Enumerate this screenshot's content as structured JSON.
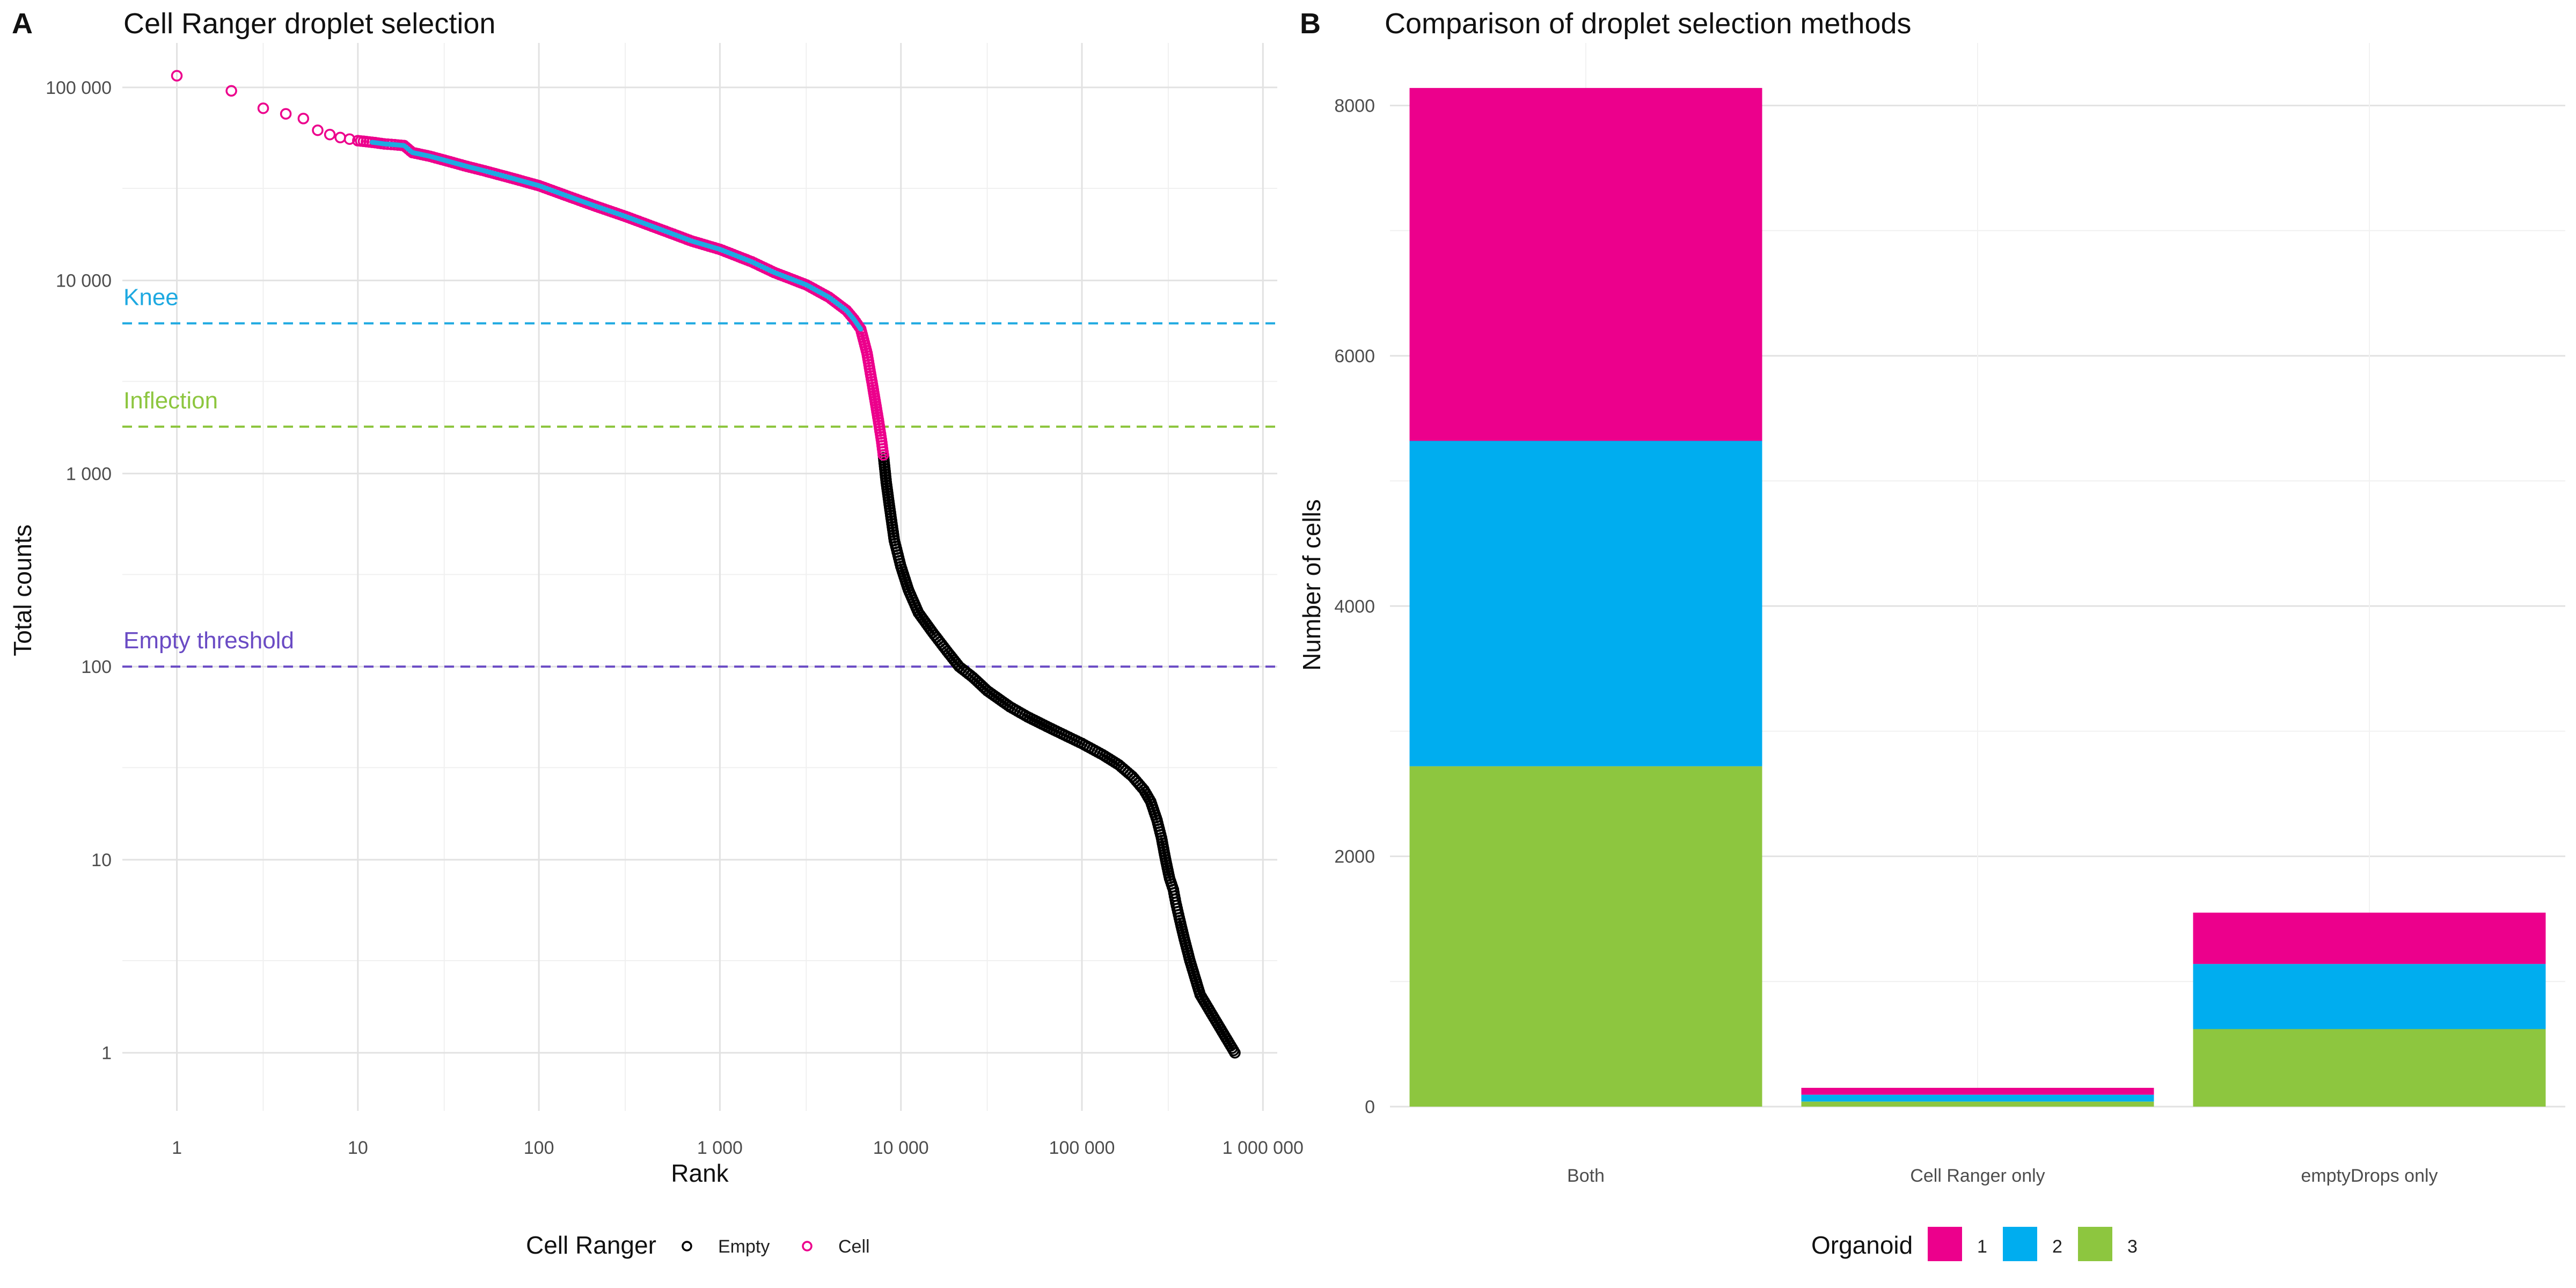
{
  "panel_a": {
    "tag": "A",
    "legend": {
      "title": "Cell Ranger",
      "items": [
        {
          "label": "Empty",
          "color": "#000000"
        },
        {
          "label": "Cell",
          "color": "#EC008C"
        }
      ]
    }
  },
  "panel_b": {
    "tag": "B",
    "legend": {
      "title": "Organoid",
      "items": [
        {
          "label": "1",
          "color": "#EC008C"
        },
        {
          "label": "2",
          "color": "#00ADEF"
        },
        {
          "label": "3",
          "color": "#8DC63F"
        }
      ]
    }
  },
  "chart_data": [
    {
      "type": "scatter",
      "title": "Cell Ranger droplet selection",
      "xlabel": "Rank",
      "ylabel": "Total counts",
      "x_scale": "log10",
      "y_scale": "log10",
      "xlim": [
        0.5,
        1200000
      ],
      "ylim": [
        0.5,
        170000
      ],
      "x_ticks": [
        {
          "value": 1,
          "label": "1"
        },
        {
          "value": 10,
          "label": "10"
        },
        {
          "value": 100,
          "label": "100"
        },
        {
          "value": 1000,
          "label": "1 000"
        },
        {
          "value": 10000,
          "label": "10 000"
        },
        {
          "value": 100000,
          "label": "100 000"
        },
        {
          "value": 1000000,
          "label": "1 000 000"
        }
      ],
      "y_ticks": [
        {
          "value": 1,
          "label": "1"
        },
        {
          "value": 10,
          "label": "10"
        },
        {
          "value": 100,
          "label": "100"
        },
        {
          "value": 1000,
          "label": "1 000"
        },
        {
          "value": 10000,
          "label": "10 000"
        },
        {
          "value": 100000,
          "label": "100 000"
        }
      ],
      "grid": true,
      "reference_lines": [
        {
          "label": "Knee",
          "y": 6000,
          "color": "#1EA9E1"
        },
        {
          "label": "Inflection",
          "y": 1750,
          "color": "#8DC63F"
        },
        {
          "label": "Empty threshold",
          "y": 100,
          "color": "#6A4BC4"
        }
      ],
      "legend_position": "bottom",
      "series": [
        {
          "name": "Cell",
          "color": "#EC008C",
          "fill_color": "#1EA9E1",
          "points": [
            [
              1,
              115000
            ],
            [
              2,
              96000
            ],
            [
              3,
              78000
            ],
            [
              4,
              73000
            ],
            [
              5,
              69000
            ],
            [
              6,
              60000
            ],
            [
              7,
              57000
            ],
            [
              8,
              55000
            ],
            [
              9,
              54000
            ],
            [
              10,
              53000
            ],
            [
              12,
              52000
            ],
            [
              14,
              51000
            ],
            [
              16,
              50500
            ],
            [
              18,
              50000
            ],
            [
              20,
              46000
            ],
            [
              25,
              44000
            ],
            [
              30,
              42000
            ],
            [
              40,
              39000
            ],
            [
              50,
              37000
            ],
            [
              70,
              34000
            ],
            [
              100,
              31000
            ],
            [
              150,
              27000
            ],
            [
              200,
              24500
            ],
            [
              300,
              21500
            ],
            [
              500,
              18000
            ],
            [
              700,
              16000
            ],
            [
              1000,
              14500
            ],
            [
              1500,
              12500
            ],
            [
              2000,
              11000
            ],
            [
              3000,
              9500
            ],
            [
              4000,
              8200
            ],
            [
              5000,
              7000
            ],
            [
              5500,
              6300
            ],
            [
              6000,
              5600
            ],
            [
              6500,
              4200
            ],
            [
              7000,
              2800
            ],
            [
              7500,
              1900
            ],
            [
              7800,
              1500
            ],
            [
              8000,
              1250
            ]
          ]
        },
        {
          "name": "Empty",
          "color": "#000000",
          "points": [
            [
              8000,
              1250
            ],
            [
              8300,
              900
            ],
            [
              8700,
              650
            ],
            [
              9200,
              450
            ],
            [
              10000,
              330
            ],
            [
              11000,
              250
            ],
            [
              12500,
              190
            ],
            [
              15000,
              150
            ],
            [
              18000,
              120
            ],
            [
              21000,
              100
            ],
            [
              25000,
              88
            ],
            [
              30000,
              75
            ],
            [
              40000,
              62
            ],
            [
              50000,
              55
            ],
            [
              70000,
              47
            ],
            [
              100000,
              40
            ],
            [
              130000,
              35
            ],
            [
              160000,
              31
            ],
            [
              190000,
              27
            ],
            [
              220000,
              23
            ],
            [
              240000,
              20
            ],
            [
              260000,
              16
            ],
            [
              275000,
              13
            ],
            [
              290000,
              10
            ],
            [
              305000,
              8
            ],
            [
              320000,
              7
            ],
            [
              330000,
              6
            ],
            [
              345000,
              5
            ],
            [
              365000,
              4
            ],
            [
              395000,
              3
            ],
            [
              450000,
              2
            ],
            [
              700000,
              1
            ]
          ]
        }
      ]
    },
    {
      "type": "bar",
      "stacked": true,
      "title": "Comparison of droplet selection methods",
      "xlabel": "",
      "ylabel": "Number of cells",
      "ylim": [
        0,
        8500
      ],
      "y_ticks": [
        0,
        2000,
        4000,
        6000,
        8000
      ],
      "categories": [
        "Both",
        "Cell Ranger only",
        "emptyDrops only"
      ],
      "legend_title": "Organoid",
      "legend_position": "bottom",
      "series": [
        {
          "name": "3",
          "color": "#8DC63F",
          "values": [
            2720,
            40,
            620
          ]
        },
        {
          "name": "2",
          "color": "#00ADEF",
          "values": [
            2600,
            55,
            520
          ]
        },
        {
          "name": "1",
          "color": "#EC008C",
          "values": [
            2820,
            55,
            410
          ]
        }
      ]
    }
  ]
}
